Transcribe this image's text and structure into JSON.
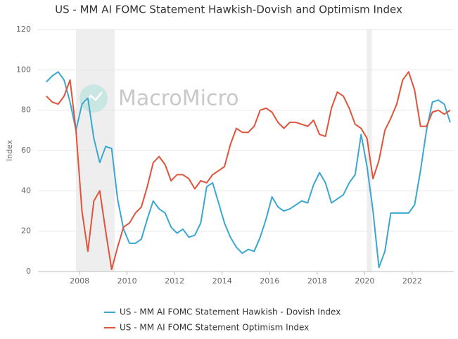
{
  "chart_data": {
    "type": "line",
    "title": "US - MM AI FOMC Statement Hawkish-Dovish and Optimism Index",
    "y_label": "Index",
    "watermark": "MacroMicro",
    "x": [
      2006.6,
      2006.85,
      2007.1,
      2007.35,
      2007.6,
      2007.85,
      2008.1,
      2008.35,
      2008.6,
      2008.85,
      2009.1,
      2009.35,
      2009.6,
      2009.85,
      2010.1,
      2010.35,
      2010.6,
      2010.85,
      2011.1,
      2011.35,
      2011.6,
      2011.85,
      2012.1,
      2012.35,
      2012.6,
      2012.85,
      2013.1,
      2013.35,
      2013.6,
      2013.85,
      2014.1,
      2014.35,
      2014.6,
      2014.85,
      2015.1,
      2015.35,
      2015.6,
      2015.85,
      2016.1,
      2016.35,
      2016.6,
      2016.85,
      2017.1,
      2017.35,
      2017.6,
      2017.85,
      2018.1,
      2018.35,
      2018.6,
      2018.85,
      2019.1,
      2019.35,
      2019.6,
      2019.85,
      2020.1,
      2020.35,
      2020.6,
      2020.85,
      2021.1,
      2021.35,
      2021.6,
      2021.85,
      2022.1,
      2022.35,
      2022.6,
      2022.85,
      2023.1,
      2023.35,
      2023.6
    ],
    "series": [
      {
        "name": "US - MM AI FOMC Statement Hawkish - Dovish Index",
        "color": "#3aa7d0",
        "values": [
          94,
          97,
          99,
          95,
          84,
          70,
          83,
          86,
          66,
          54,
          62,
          61,
          36,
          21,
          14,
          14,
          16,
          26,
          35,
          31,
          29,
          22,
          19,
          21,
          17,
          18,
          24,
          42,
          44,
          34,
          24,
          17,
          12,
          9,
          11,
          10,
          17,
          26,
          37,
          32,
          30,
          31,
          33,
          35,
          34,
          43,
          49,
          44,
          34,
          36,
          38,
          44,
          48,
          68,
          52,
          30,
          2,
          10,
          29,
          29,
          29,
          29,
          33,
          50,
          70,
          84,
          85,
          83,
          74
        ]
      },
      {
        "name": "US - MM AI FOMC Statement Optimism Index",
        "color": "#e0533b",
        "values": [
          87,
          84,
          83,
          87,
          95,
          70,
          30,
          10,
          35,
          40,
          20,
          1,
          12,
          22,
          24,
          29,
          32,
          42,
          54,
          57,
          53,
          45,
          48,
          48,
          46,
          41,
          45,
          44,
          48,
          50,
          52,
          63,
          71,
          69,
          69,
          72,
          80,
          81,
          79,
          74,
          71,
          74,
          74,
          73,
          72,
          75,
          68,
          67,
          81,
          89,
          87,
          81,
          73,
          71,
          66,
          46,
          55,
          70,
          76,
          83,
          95,
          99,
          90,
          72,
          72,
          79,
          80,
          78,
          80
        ]
      }
    ],
    "xlim": [
      2006.25,
      2023.75
    ],
    "xticks": [
      2008,
      2010,
      2012,
      2014,
      2016,
      2018,
      2020,
      2022
    ],
    "ylim": [
      0,
      120
    ],
    "yticks": [
      0,
      20,
      40,
      60,
      80,
      100,
      120
    ],
    "grid": true,
    "recessions": [
      [
        2007.85,
        2009.48
      ],
      [
        2020.09,
        2020.3
      ]
    ],
    "recession_color": "#eeeeee",
    "legend": "bottom"
  }
}
